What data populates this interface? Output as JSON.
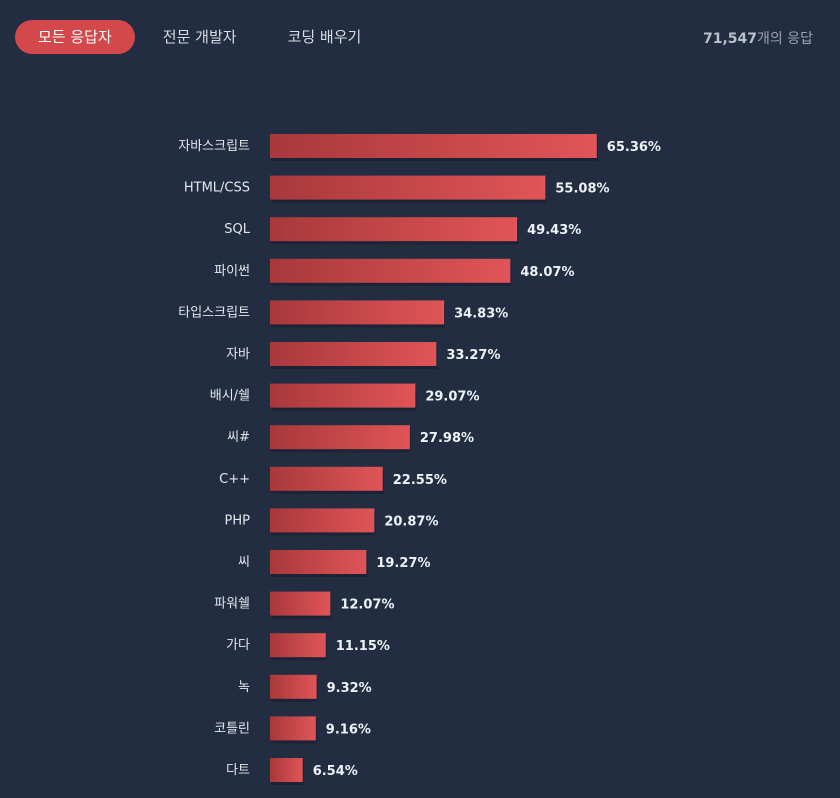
{
  "tabs": [
    {
      "label": "모든 응답자",
      "active": true
    },
    {
      "label": "전문 개발자",
      "active": false
    },
    {
      "label": "코딩 배우기",
      "active": false
    }
  ],
  "responses": {
    "number": "71,547",
    "suffix": "개의 응답"
  },
  "colors": {
    "background": "#232d41",
    "bar_start": "#a8383c",
    "bar_end": "#e05557",
    "active_tab": "#d2484b"
  },
  "chart_data": {
    "type": "bar",
    "orientation": "horizontal",
    "categories": [
      "자바스크립트",
      "HTML/CSS",
      "SQL",
      "파이썬",
      "타입스크립트",
      "자바",
      "배시/쉘",
      "씨#",
      "C++",
      "PHP",
      "씨",
      "파워쉘",
      "가다",
      "녹",
      "코틀린",
      "다트"
    ],
    "values": [
      65.36,
      55.08,
      49.43,
      48.07,
      34.83,
      33.27,
      29.07,
      27.98,
      22.55,
      20.87,
      19.27,
      12.07,
      11.15,
      9.32,
      9.16,
      6.54
    ],
    "value_labels": [
      "65.36%",
      "55.08%",
      "49.43%",
      "48.07%",
      "34.83%",
      "33.27%",
      "29.07%",
      "27.98%",
      "22.55%",
      "20.87%",
      "19.27%",
      "12.07%",
      "11.15%",
      "9.32%",
      "9.16%",
      "6.54%"
    ],
    "xlim": [
      0,
      100
    ],
    "grid": false
  }
}
